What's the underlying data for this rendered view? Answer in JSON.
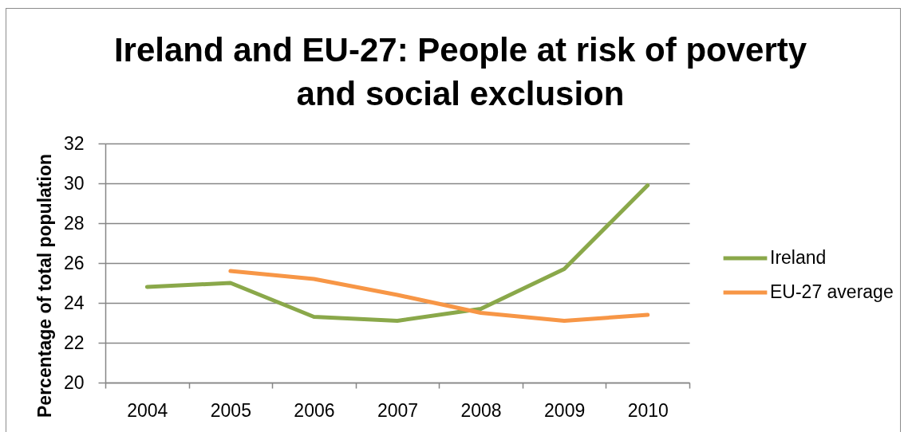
{
  "chart_data": {
    "type": "line",
    "title": "Ireland and EU-27: People at risk of poverty and social exclusion",
    "ylabel": "Percentage of total population",
    "categories": [
      "2004",
      "2005",
      "2006",
      "2007",
      "2008",
      "2009",
      "2010"
    ],
    "series": [
      {
        "name": "Ireland",
        "color": "#8aa84a",
        "values": [
          24.8,
          25.0,
          23.3,
          23.1,
          23.7,
          25.7,
          29.9
        ]
      },
      {
        "name": "EU-27 average",
        "color": "#f79646",
        "values": [
          null,
          25.6,
          25.2,
          24.4,
          23.5,
          23.1,
          23.4
        ]
      }
    ],
    "ylim": [
      20,
      32
    ],
    "yticks": [
      20,
      22,
      24,
      26,
      28,
      30,
      32
    ],
    "grid": "y",
    "legend": "right"
  }
}
